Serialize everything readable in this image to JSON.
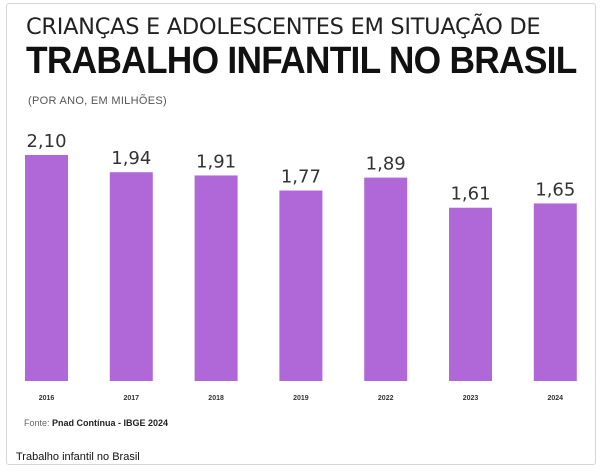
{
  "header": {
    "title_line1": "CRIANÇAS E ADOLESCENTES EM SITUAÇÃO DE",
    "title_line2": "TRABALHO INFANTIL NO BRASIL",
    "subtitle": "(POR ANO, EM MILHÕES)"
  },
  "footer": {
    "source_prefix": "Fonte: ",
    "source_bold": "Pnad Contínua - IBGE 2024",
    "caption": "Trabalho infantil no Brasil"
  },
  "chart_data": {
    "type": "bar",
    "categories": [
      "2016",
      "2017",
      "2018",
      "2019",
      "2022",
      "2023",
      "2024"
    ],
    "values": [
      2.1,
      1.94,
      1.91,
      1.77,
      1.89,
      1.61,
      1.65
    ],
    "value_labels": [
      "2,10",
      "1,94",
      "1,91",
      "1,77",
      "1,89",
      "1,61",
      "1,65"
    ],
    "title": "TRABALHO INFANTIL NO BRASIL",
    "xlabel": "",
    "ylabel": "",
    "ylim": [
      0,
      2.1
    ],
    "grid": false,
    "bar_color": "#b068d8"
  }
}
